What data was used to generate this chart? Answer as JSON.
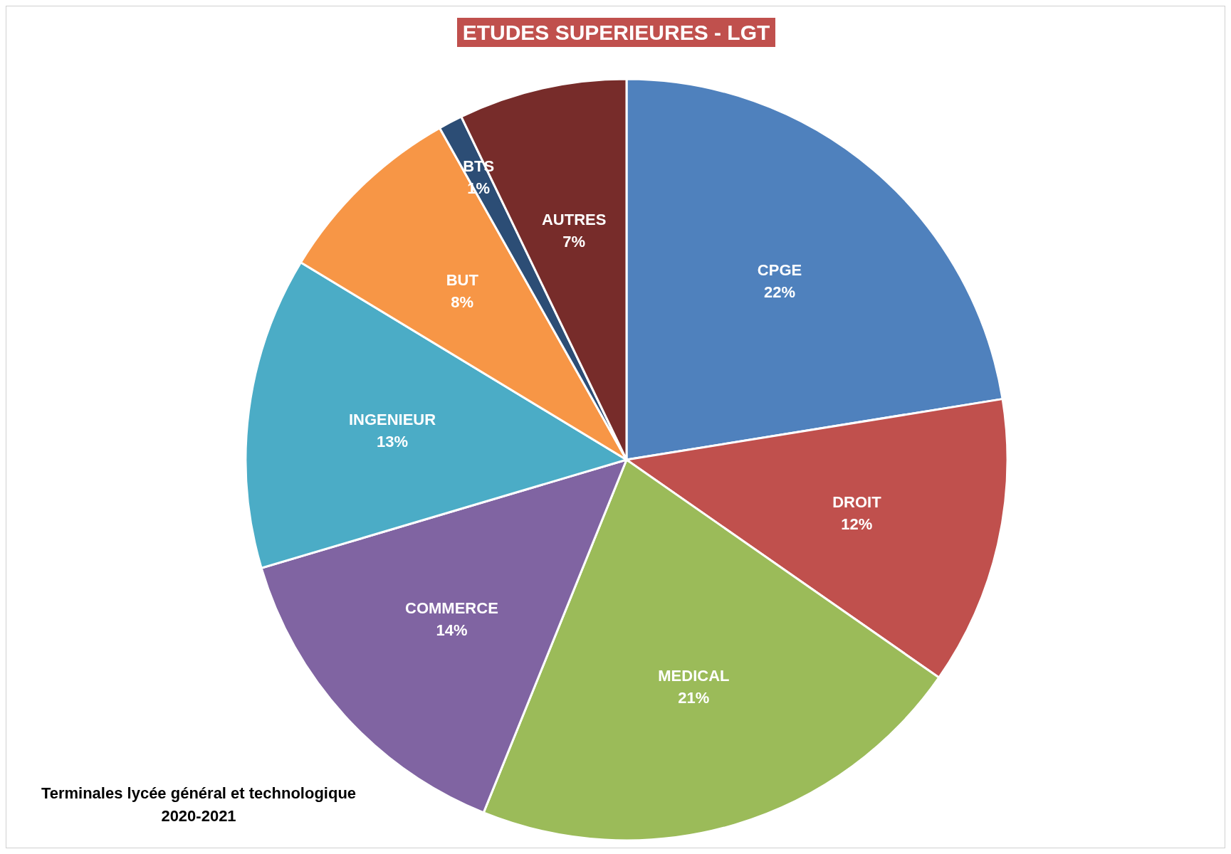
{
  "chart_data": {
    "type": "pie",
    "title": "ETUDES SUPERIEURES - LGT",
    "categories": [
      "CPGE",
      "DROIT",
      "MEDICAL",
      "COMMERCE",
      "INGENIEUR",
      "BUT",
      "BTS",
      "AUTRES"
    ],
    "values": [
      22,
      12,
      21,
      14,
      13,
      8,
      1,
      7
    ],
    "value_labels": [
      "22%",
      "12%",
      "21%",
      "14%",
      "13%",
      "8%",
      "1%",
      "7%"
    ],
    "colors": [
      "#4f81bd",
      "#c0504d",
      "#9bbb59",
      "#8064a2",
      "#4bacc6",
      "#f79646",
      "#2c4d75",
      "#772c2a"
    ],
    "annotations": [
      "Terminales lycée général et technologique\n2020-2021"
    ],
    "legend": false
  }
}
